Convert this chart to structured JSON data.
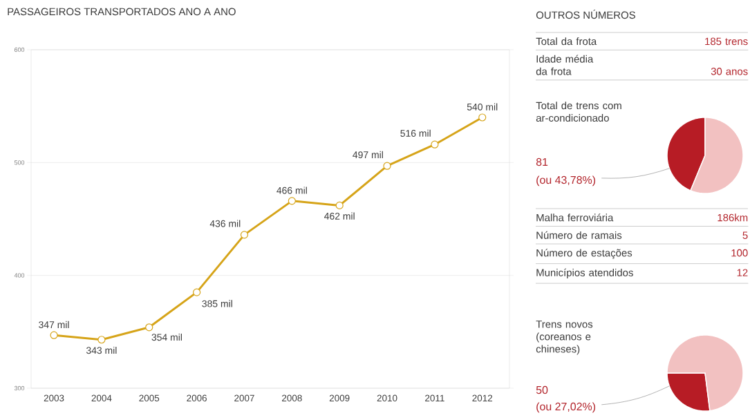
{
  "chart_data": [
    {
      "type": "line",
      "title": "PASSAGEIROS TRANSPORTADOS ANO A ANO",
      "categories": [
        "2003",
        "2004",
        "2005",
        "2006",
        "2007",
        "2008",
        "2009",
        "2010",
        "2011",
        "2012"
      ],
      "values": [
        347,
        343,
        354,
        385,
        436,
        466,
        462,
        497,
        516,
        540
      ],
      "value_labels": [
        "347 mil",
        "343 mil",
        "354 mil",
        "385 mil",
        "436 mil",
        "466 mil",
        "462 mil",
        "497 mil",
        "516 mil",
        "540 mil"
      ],
      "color": "#d6a419",
      "marker": "circle",
      "ylim": [
        300,
        600
      ],
      "yticks": [
        300,
        400,
        500,
        600
      ],
      "grid": "y"
    },
    {
      "type": "other",
      "title": "OUTROS NÚMEROS",
      "annotations": [
        "Total da frota",
        "185 trens",
        "Idade média da frota",
        "30 anos"
      ]
    },
    {
      "type": "pie",
      "title": "Total de trens com ar-condicionado",
      "categories": [
        null,
        null
      ],
      "values": [
        43.78,
        56.22
      ],
      "colors": [
        "#b71c25",
        "#f2c1c1"
      ],
      "annotations": [
        "81",
        "(ou 43,78%)"
      ]
    },
    {
      "type": "other",
      "annotations": [
        "Malha ferroviária",
        "186km",
        "Número de ramais",
        "5",
        "Número de estações",
        "100",
        "Municípios atendidos",
        "12"
      ]
    },
    {
      "type": "pie",
      "title": "Trens novos (coreanos e chineses)",
      "categories": [
        null,
        null
      ],
      "values": [
        27.02,
        72.98
      ],
      "colors": [
        "#b71c25",
        "#f2c1c1"
      ],
      "annotations": [
        "50",
        "(ou 27,02%)"
      ]
    }
  ]
}
